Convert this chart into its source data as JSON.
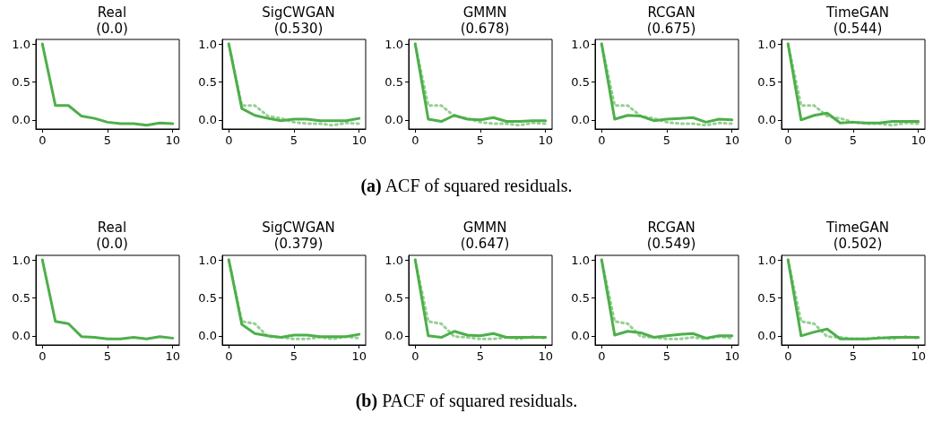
{
  "chart_data": [
    {
      "type": "line",
      "title": "Real\n(0.0)",
      "x": [
        0,
        1,
        2,
        3,
        4,
        5,
        6,
        7,
        8,
        9,
        10
      ],
      "xlim": [
        -0.5,
        10.5
      ],
      "ylim": [
        -0.12,
        1.06
      ],
      "xticks": [
        0,
        5,
        10
      ],
      "yticks": [
        {
          "value": 0,
          "label": "0.0"
        },
        {
          "value": 0.5,
          "label": "0.5"
        },
        {
          "value": 1,
          "label": "1.0"
        }
      ],
      "grid": false,
      "marker": "none",
      "annotations": [
        "(a) ACF of squared residuals."
      ],
      "series": [
        {
          "color": "#4daf4a",
          "line_style": "solid",
          "values": [
            1,
            0.19,
            0.19,
            0.05,
            0.02,
            -0.03,
            -0.05,
            -0.05,
            -0.07,
            -0.04,
            -0.05
          ]
        }
      ]
    },
    {
      "type": "line",
      "title": "SigCWGAN\n(0.530)",
      "x": [
        0,
        1,
        2,
        3,
        4,
        5,
        6,
        7,
        8,
        9,
        10
      ],
      "xlim": [
        -0.5,
        10.5
      ],
      "ylim": [
        -0.12,
        1.06
      ],
      "xticks": [
        0,
        5,
        10
      ],
      "yticks": [
        {
          "value": 0,
          "label": "0.0"
        },
        {
          "value": 0.5,
          "label": "0.5"
        },
        {
          "value": 1,
          "label": "1.0"
        }
      ],
      "grid": false,
      "marker": "none",
      "series": [
        {
          "color": "#94d092",
          "line_style": "dotted",
          "values": [
            1,
            0.19,
            0.19,
            0.05,
            0.02,
            -0.03,
            -0.05,
            -0.05,
            -0.07,
            -0.04,
            -0.05
          ]
        },
        {
          "color": "#4daf4a",
          "line_style": "solid",
          "values": [
            1,
            0.15,
            0.06,
            0.02,
            -0.01,
            0.01,
            0.01,
            -0.01,
            -0.01,
            -0.01,
            0.02
          ]
        }
      ]
    },
    {
      "type": "line",
      "title": "GMMN\n(0.678)",
      "x": [
        0,
        1,
        2,
        3,
        4,
        5,
        6,
        7,
        8,
        9,
        10
      ],
      "xlim": [
        -0.5,
        10.5
      ],
      "ylim": [
        -0.12,
        1.06
      ],
      "xticks": [
        0,
        5,
        10
      ],
      "yticks": [
        {
          "value": 0,
          "label": "0.0"
        },
        {
          "value": 0.5,
          "label": "0.5"
        },
        {
          "value": 1,
          "label": "1.0"
        }
      ],
      "grid": false,
      "marker": "none",
      "series": [
        {
          "color": "#94d092",
          "line_style": "dotted",
          "values": [
            1,
            0.19,
            0.19,
            0.05,
            0.02,
            -0.03,
            -0.05,
            -0.05,
            -0.07,
            -0.04,
            -0.05
          ]
        },
        {
          "color": "#4daf4a",
          "line_style": "solid",
          "values": [
            1,
            0.01,
            -0.02,
            0.06,
            0.01,
            0.0,
            0.03,
            -0.02,
            -0.02,
            -0.01,
            -0.01
          ]
        }
      ]
    },
    {
      "type": "line",
      "title": "RCGAN\n(0.675)",
      "x": [
        0,
        1,
        2,
        3,
        4,
        5,
        6,
        7,
        8,
        9,
        10
      ],
      "xlim": [
        -0.5,
        10.5
      ],
      "ylim": [
        -0.12,
        1.06
      ],
      "xticks": [
        0,
        5,
        10
      ],
      "yticks": [
        {
          "value": 0,
          "label": "0.0"
        },
        {
          "value": 0.5,
          "label": "0.5"
        },
        {
          "value": 1,
          "label": "1.0"
        }
      ],
      "grid": false,
      "marker": "none",
      "series": [
        {
          "color": "#94d092",
          "line_style": "dotted",
          "values": [
            1,
            0.19,
            0.19,
            0.05,
            0.02,
            -0.03,
            -0.05,
            -0.05,
            -0.07,
            -0.04,
            -0.05
          ]
        },
        {
          "color": "#4daf4a",
          "line_style": "solid",
          "values": [
            1,
            0.01,
            0.06,
            0.05,
            -0.01,
            0.01,
            0.02,
            0.03,
            -0.03,
            0.01,
            0.0
          ]
        }
      ]
    },
    {
      "type": "line",
      "title": "TimeGAN\n(0.544)",
      "x": [
        0,
        1,
        2,
        3,
        4,
        5,
        6,
        7,
        8,
        9,
        10
      ],
      "xlim": [
        -0.5,
        10.5
      ],
      "ylim": [
        -0.12,
        1.06
      ],
      "xticks": [
        0,
        5,
        10
      ],
      "yticks": [
        {
          "value": 0,
          "label": "0.0"
        },
        {
          "value": 0.5,
          "label": "0.5"
        },
        {
          "value": 1,
          "label": "1.0"
        }
      ],
      "grid": false,
      "marker": "none",
      "series": [
        {
          "color": "#94d092",
          "line_style": "dotted",
          "values": [
            1,
            0.19,
            0.19,
            0.05,
            0.02,
            -0.03,
            -0.05,
            -0.05,
            -0.07,
            -0.04,
            -0.05
          ]
        },
        {
          "color": "#4daf4a",
          "line_style": "solid",
          "values": [
            1,
            0.0,
            0.06,
            0.09,
            -0.04,
            -0.03,
            -0.04,
            -0.04,
            -0.02,
            -0.02,
            -0.02
          ]
        }
      ]
    },
    {
      "type": "line",
      "title": "Real\n(0.0)",
      "x": [
        0,
        1,
        2,
        3,
        4,
        5,
        6,
        7,
        8,
        9,
        10
      ],
      "xlim": [
        -0.5,
        10.5
      ],
      "ylim": [
        -0.12,
        1.06
      ],
      "xticks": [
        0,
        5,
        10
      ],
      "yticks": [
        {
          "value": 0,
          "label": "0.0"
        },
        {
          "value": 0.5,
          "label": "0.5"
        },
        {
          "value": 1,
          "label": "1.0"
        }
      ],
      "grid": false,
      "marker": "none",
      "annotations": [
        "(b) PACF of squared residuals."
      ],
      "series": [
        {
          "color": "#4daf4a",
          "line_style": "solid",
          "values": [
            1,
            0.19,
            0.16,
            -0.01,
            -0.02,
            -0.04,
            -0.04,
            -0.02,
            -0.04,
            -0.01,
            -0.03
          ]
        }
      ]
    },
    {
      "type": "line",
      "title": "SigCWGAN\n(0.379)",
      "x": [
        0,
        1,
        2,
        3,
        4,
        5,
        6,
        7,
        8,
        9,
        10
      ],
      "xlim": [
        -0.5,
        10.5
      ],
      "ylim": [
        -0.12,
        1.06
      ],
      "xticks": [
        0,
        5,
        10
      ],
      "yticks": [
        {
          "value": 0,
          "label": "0.0"
        },
        {
          "value": 0.5,
          "label": "0.5"
        },
        {
          "value": 1,
          "label": "1.0"
        }
      ],
      "grid": false,
      "marker": "none",
      "series": [
        {
          "color": "#94d092",
          "line_style": "dotted",
          "values": [
            1,
            0.19,
            0.16,
            -0.01,
            -0.02,
            -0.04,
            -0.04,
            -0.02,
            -0.04,
            -0.01,
            -0.03
          ]
        },
        {
          "color": "#4daf4a",
          "line_style": "solid",
          "values": [
            1,
            0.15,
            0.03,
            0.0,
            -0.02,
            0.01,
            0.01,
            -0.01,
            -0.01,
            -0.01,
            0.02
          ]
        }
      ]
    },
    {
      "type": "line",
      "title": "GMMN\n(0.647)",
      "x": [
        0,
        1,
        2,
        3,
        4,
        5,
        6,
        7,
        8,
        9,
        10
      ],
      "xlim": [
        -0.5,
        10.5
      ],
      "ylim": [
        -0.12,
        1.06
      ],
      "xticks": [
        0,
        5,
        10
      ],
      "yticks": [
        {
          "value": 0,
          "label": "0.0"
        },
        {
          "value": 0.5,
          "label": "0.5"
        },
        {
          "value": 1,
          "label": "1.0"
        }
      ],
      "grid": false,
      "marker": "none",
      "series": [
        {
          "color": "#94d092",
          "line_style": "dotted",
          "values": [
            1,
            0.19,
            0.16,
            -0.01,
            -0.02,
            -0.04,
            -0.04,
            -0.02,
            -0.04,
            -0.01,
            -0.03
          ]
        },
        {
          "color": "#4daf4a",
          "line_style": "solid",
          "values": [
            1,
            0.0,
            -0.02,
            0.06,
            0.01,
            0.0,
            0.03,
            -0.02,
            -0.02,
            -0.02,
            -0.02
          ]
        }
      ]
    },
    {
      "type": "line",
      "title": "RCGAN\n(0.549)",
      "x": [
        0,
        1,
        2,
        3,
        4,
        5,
        6,
        7,
        8,
        9,
        10
      ],
      "xlim": [
        -0.5,
        10.5
      ],
      "ylim": [
        -0.12,
        1.06
      ],
      "xticks": [
        0,
        5,
        10
      ],
      "yticks": [
        {
          "value": 0,
          "label": "0.0"
        },
        {
          "value": 0.5,
          "label": "0.5"
        },
        {
          "value": 1,
          "label": "1.0"
        }
      ],
      "grid": false,
      "marker": "none",
      "series": [
        {
          "color": "#94d092",
          "line_style": "dotted",
          "values": [
            1,
            0.19,
            0.16,
            -0.01,
            -0.02,
            -0.04,
            -0.04,
            -0.02,
            -0.04,
            -0.01,
            -0.03
          ]
        },
        {
          "color": "#4daf4a",
          "line_style": "solid",
          "values": [
            1,
            0.01,
            0.06,
            0.04,
            -0.02,
            0.0,
            0.02,
            0.03,
            -0.03,
            0.0,
            0.0
          ]
        }
      ]
    },
    {
      "type": "line",
      "title": "TimeGAN\n(0.502)",
      "x": [
        0,
        1,
        2,
        3,
        4,
        5,
        6,
        7,
        8,
        9,
        10
      ],
      "xlim": [
        -0.5,
        10.5
      ],
      "ylim": [
        -0.12,
        1.06
      ],
      "xticks": [
        0,
        5,
        10
      ],
      "yticks": [
        {
          "value": 0,
          "label": "0.0"
        },
        {
          "value": 0.5,
          "label": "0.5"
        },
        {
          "value": 1,
          "label": "1.0"
        }
      ],
      "grid": false,
      "marker": "none",
      "series": [
        {
          "color": "#94d092",
          "line_style": "dotted",
          "values": [
            1,
            0.19,
            0.16,
            -0.01,
            -0.02,
            -0.04,
            -0.04,
            -0.02,
            -0.04,
            -0.01,
            -0.03
          ]
        },
        {
          "color": "#4daf4a",
          "line_style": "solid",
          "values": [
            1,
            0.0,
            0.05,
            0.09,
            -0.04,
            -0.04,
            -0.04,
            -0.03,
            -0.02,
            -0.02,
            -0.02
          ]
        }
      ]
    }
  ]
}
